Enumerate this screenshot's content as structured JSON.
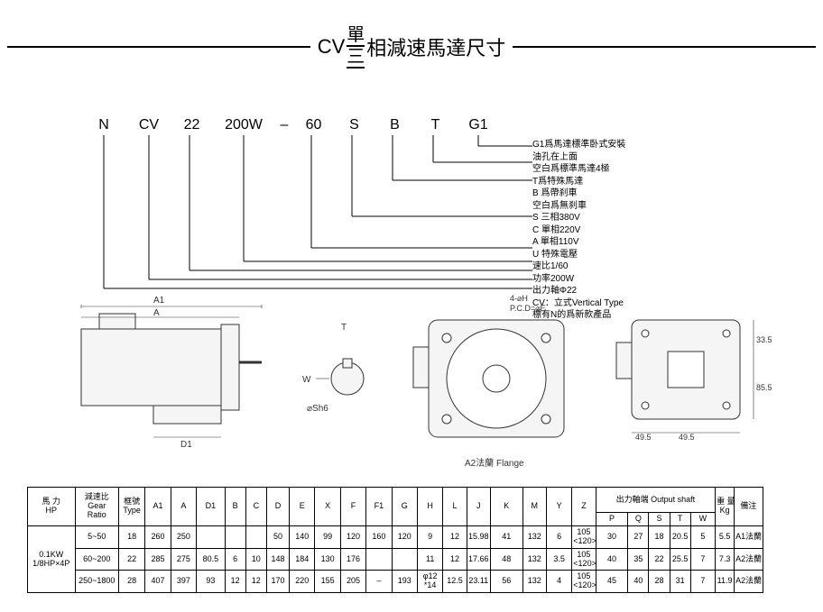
{
  "title": {
    "prefix": "CV",
    "stack_top": "單",
    "stack_bot": "三",
    "suffix": "相減速馬達尺寸"
  },
  "model": {
    "parts": [
      "N",
      "CV",
      "22",
      "200W",
      "–",
      "60",
      "S",
      "B",
      "T",
      "G1"
    ],
    "legend": [
      "G1爲馬達標準卧式安裝",
      "油孔在上面",
      "空白爲標準馬達4極",
      "T爲特殊馬達",
      "B  爲帶刹車",
      "空白爲無刹車",
      "S  三相380V",
      "C  單相220V",
      "A  單相110V",
      "U  特殊電壓",
      "速比1/60",
      "功率200W",
      "出力軸Φ22",
      "CV：立式Vertical Type",
      "標有N的爲新款產品"
    ]
  },
  "diagrams": {
    "a1_label": "A1",
    "a_label": "A",
    "d1_label": "D1",
    "sh6_label": "⌀Sh6",
    "t_label": "T",
    "w_label": "W",
    "flange_label": "A2法蘭 Flange",
    "pcd_label": "4-⌀H\nP.C.D=⌀E",
    "dims_right": [
      "49.5",
      "49.5",
      "85.5",
      "33.5"
    ]
  },
  "table": {
    "headers_top": {
      "hp": "馬 力\nHP",
      "ratio": "減速比\nGear\nRatio",
      "type": "框號\nType",
      "output_shaft": "出力軸端 Output shaft",
      "weight": "重 量\nKg",
      "note": "備注"
    },
    "cols": [
      "A1",
      "A",
      "D1",
      "B",
      "C",
      "D",
      "E",
      "X",
      "F",
      "F1",
      "G",
      "H",
      "L",
      "J",
      "K",
      "M",
      "Y",
      "Z"
    ],
    "shaft_cols": [
      "P",
      "Q",
      "S",
      "T",
      "W"
    ],
    "hp_cell": "0.1KW\n1/8HP×4P",
    "rows": [
      {
        "ratio": "5~50",
        "type": "18",
        "vals": [
          "260",
          "250",
          "",
          "",
          "",
          "50",
          "140",
          "99",
          "120",
          "160",
          "120",
          "9",
          "12",
          "15.98",
          "41",
          "132",
          "6",
          "105\n<120>"
        ],
        "shaft": [
          "30",
          "27",
          "18",
          "20.5",
          "5"
        ],
        "kg": "5.5",
        "note": "A1法蘭"
      },
      {
        "ratio": "60~200",
        "type": "22",
        "vals": [
          "285",
          "275",
          "80.5",
          "6",
          "10",
          "148",
          "184",
          "130",
          "176",
          "",
          "",
          "11",
          "12",
          "17.66",
          "48",
          "132",
          "3.5",
          "105\n<120>"
        ],
        "shaft": [
          "40",
          "35",
          "22",
          "25.5",
          "7"
        ],
        "kg": "7.3",
        "note": "A2法蘭"
      },
      {
        "ratio": "250~1800",
        "type": "28",
        "vals": [
          "407",
          "397",
          "93",
          "12",
          "12",
          "170",
          "220",
          "155",
          "205",
          "–",
          "193",
          "φ12\n*14",
          "12.5",
          "23.11",
          "56",
          "132",
          "4",
          "105\n<120>"
        ],
        "shaft": [
          "45",
          "40",
          "28",
          "31",
          "7"
        ],
        "kg": "11.9",
        "note": "A2法蘭"
      }
    ]
  },
  "colors": {
    "line": "#000000",
    "bg": "#ffffff",
    "diagram_fill": "#f0f0f0"
  }
}
